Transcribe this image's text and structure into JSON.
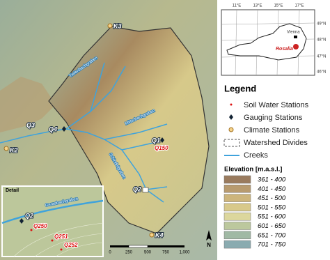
{
  "main_map": {
    "stations": [
      "K3",
      "Q3",
      "Q4",
      "K2",
      "Q1",
      "Q150",
      "Q2",
      "K4"
    ],
    "creeks": [
      "Tiefenbachgraben",
      "Mitterbachgraben",
      "Schindelgraben"
    ],
    "scale": [
      "0",
      "250",
      "500",
      "750",
      "1,000"
    ],
    "north": "N"
  },
  "detail": {
    "title": "Detail",
    "creek": "Gerasbachgraben",
    "stations": [
      "Q2",
      "Q250",
      "Q251",
      "Q252"
    ]
  },
  "overview": {
    "lon_labels": [
      "11°E",
      "13°E",
      "15°E",
      "17°E"
    ],
    "lat_labels": [
      "49°N",
      "48°N",
      "47°N",
      "46°N"
    ],
    "places": [
      "Vienna",
      "Rosalia"
    ]
  },
  "legend": {
    "title": "Legend",
    "items": [
      "Soil Water Stations",
      "Gauging Stations",
      "Climate Stations",
      "Watershed Divides",
      "Creeks"
    ]
  },
  "elevation": {
    "title": "Elevation [m.a.s.l.]",
    "classes": [
      {
        "label": "361 - 400",
        "color": "#9a7b5e"
      },
      {
        "label": "401 - 450",
        "color": "#b89b6f"
      },
      {
        "label": "451 - 500",
        "color": "#cdb57c"
      },
      {
        "label": "501 - 550",
        "color": "#d8c98a"
      },
      {
        "label": "551 - 600",
        "color": "#dcd79d"
      },
      {
        "label": "601 - 650",
        "color": "#bcc89d"
      },
      {
        "label": "651 - 700",
        "color": "#a0b9a4"
      },
      {
        "label": "701 - 750",
        "color": "#8aabb0"
      }
    ]
  }
}
